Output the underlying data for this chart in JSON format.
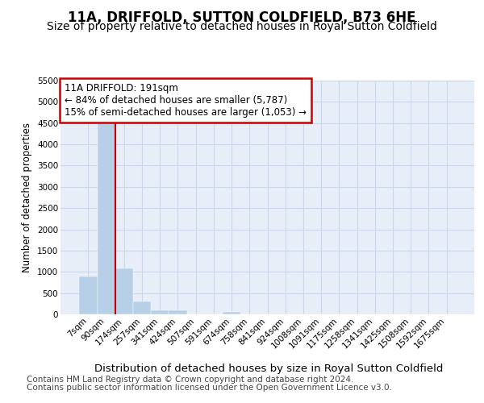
{
  "title": "11A, DRIFFOLD, SUTTON COLDFIELD, B73 6HE",
  "subtitle": "Size of property relative to detached houses in Royal Sutton Coldfield",
  "xlabel": "Distribution of detached houses by size in Royal Sutton Coldfield",
  "ylabel": "Number of detached properties",
  "footnote1": "Contains HM Land Registry data © Crown copyright and database right 2024.",
  "footnote2": "Contains public sector information licensed under the Open Government Licence v3.0.",
  "categories": [
    "7sqm",
    "90sqm",
    "174sqm",
    "257sqm",
    "341sqm",
    "424sqm",
    "507sqm",
    "591sqm",
    "674sqm",
    "758sqm",
    "841sqm",
    "924sqm",
    "1008sqm",
    "1091sqm",
    "1175sqm",
    "1258sqm",
    "1341sqm",
    "1425sqm",
    "1508sqm",
    "1592sqm",
    "1675sqm"
  ],
  "values": [
    900,
    4600,
    1075,
    300,
    100,
    90,
    0,
    0,
    50,
    0,
    0,
    0,
    0,
    0,
    0,
    0,
    0,
    0,
    0,
    0,
    0
  ],
  "ylim": [
    0,
    5500
  ],
  "yticks": [
    0,
    500,
    1000,
    1500,
    2000,
    2500,
    3000,
    3500,
    4000,
    4500,
    5000,
    5500
  ],
  "bar_color": "#b8cfe8",
  "bar_edge_color": "#b8cfe8",
  "bar_width": 1.0,
  "vline_color": "#cc0000",
  "vline_position": 1.5,
  "annotation_line1": "11A DRIFFOLD: 191sqm",
  "annotation_line2": "← 84% of detached houses are smaller (5,787)",
  "annotation_line3": "15% of semi-detached houses are larger (1,053) →",
  "annotation_box_edgecolor": "#cc0000",
  "grid_color": "#c8d8ec",
  "bg_color": "#e8eef8",
  "title_fontsize": 12,
  "subtitle_fontsize": 10,
  "xlabel_fontsize": 9.5,
  "ylabel_fontsize": 8.5,
  "tick_fontsize": 7.5,
  "annotation_fontsize": 8.5,
  "footnote_fontsize": 7.5
}
